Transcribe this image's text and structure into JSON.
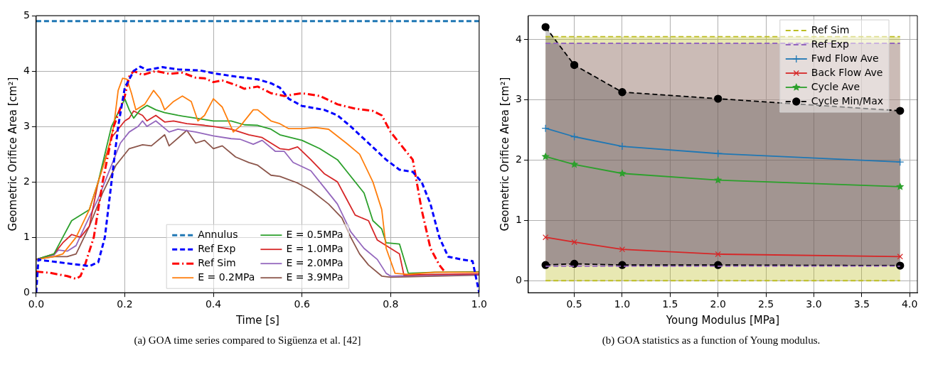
{
  "chart_data": [
    {
      "type": "line",
      "xlabel": "Time [s]",
      "ylabel": "Geometric Orifice Area [cm²]",
      "xlim": [
        0,
        1
      ],
      "ylim": [
        0,
        5
      ],
      "xticks": [
        {
          "value": 0,
          "label": "0.0"
        },
        {
          "value": 0.2,
          "label": "0.2"
        },
        {
          "value": 0.4,
          "label": "0.4"
        },
        {
          "value": 0.6,
          "label": "0.6"
        },
        {
          "value": 0.8,
          "label": "0.8"
        },
        {
          "value": 1,
          "label": "1.0"
        }
      ],
      "yticks": [
        0,
        1,
        2,
        3,
        4,
        5
      ],
      "grid": true,
      "legend": "bottom",
      "annotations": [
        "(a) GOA time series compared to Sigüenza et al. [42]"
      ],
      "ref_lines": [
        {
          "axis": "y",
          "value": 4.9,
          "label": "Annulus",
          "color": "#1f77b4",
          "line_style": "dashed"
        }
      ],
      "series": [
        {
          "name": "Ref Exp",
          "color": "#0000ff",
          "line_style": "dashed",
          "x": [
            0,
            0.005,
            0.02,
            0.1,
            0.12,
            0.14,
            0.155,
            0.17,
            0.185,
            0.2,
            0.22,
            0.235,
            0.25,
            0.285,
            0.32,
            0.37,
            0.4,
            0.45,
            0.5,
            0.53,
            0.55,
            0.57,
            0.6,
            0.65,
            0.68,
            0.71,
            0.75,
            0.79,
            0.82,
            0.85,
            0.87,
            0.89,
            0.91,
            0.93,
            0.96,
            0.985,
            1
          ],
          "values": [
            0,
            0.6,
            0.58,
            0.5,
            0.48,
            0.55,
            1,
            2,
            3,
            3.7,
            4,
            4.08,
            4.02,
            4.07,
            4.03,
            4.01,
            3.96,
            3.9,
            3.85,
            3.78,
            3.7,
            3.5,
            3.37,
            3.3,
            3.2,
            3,
            2.7,
            2.4,
            2.22,
            2.18,
            2,
            1.6,
            1,
            0.65,
            0.6,
            0.57,
            0
          ]
        },
        {
          "name": "Ref Sim",
          "color": "#ff0000",
          "line_style": "dashdot",
          "x": [
            0,
            0.03,
            0.07,
            0.09,
            0.1,
            0.11,
            0.13,
            0.15,
            0.175,
            0.2,
            0.21,
            0.22,
            0.24,
            0.27,
            0.3,
            0.33,
            0.36,
            0.38,
            0.4,
            0.42,
            0.45,
            0.47,
            0.5,
            0.53,
            0.56,
            0.6,
            0.64,
            0.68,
            0.72,
            0.76,
            0.78,
            0.8,
            0.85,
            0.87,
            0.89,
            0.91,
            0.92
          ],
          "values": [
            0.38,
            0.36,
            0.3,
            0.25,
            0.3,
            0.5,
            1,
            2,
            3,
            3.55,
            3.9,
            4,
            3.93,
            4,
            3.95,
            3.97,
            3.88,
            3.87,
            3.8,
            3.83,
            3.75,
            3.68,
            3.72,
            3.6,
            3.55,
            3.6,
            3.55,
            3.4,
            3.32,
            3.28,
            3.2,
            2.9,
            2.4,
            1.5,
            0.8,
            0.5,
            0.4
          ]
        },
        {
          "name": "E = 0.2MPa",
          "color": "#ff7f0e",
          "line_style": "solid",
          "x": [
            0,
            0.04,
            0.06,
            0.09,
            0.12,
            0.16,
            0.175,
            0.185,
            0.195,
            0.205,
            0.215,
            0.225,
            0.245,
            0.265,
            0.28,
            0.29,
            0.31,
            0.33,
            0.35,
            0.365,
            0.38,
            0.4,
            0.42,
            0.445,
            0.46,
            0.49,
            0.5,
            0.53,
            0.55,
            0.57,
            0.6,
            0.63,
            0.66,
            0.7,
            0.73,
            0.76,
            0.78,
            0.79,
            0.81,
            0.84,
            0.9,
            1
          ],
          "values": [
            0.6,
            0.65,
            0.7,
            1,
            1.5,
            2.5,
            3,
            3.65,
            3.87,
            3.85,
            3.6,
            3.3,
            3.4,
            3.65,
            3.5,
            3.3,
            3.45,
            3.55,
            3.45,
            3.1,
            3.2,
            3.5,
            3.35,
            2.9,
            3,
            3.3,
            3.3,
            3.1,
            3.05,
            2.96,
            2.96,
            2.98,
            2.95,
            2.7,
            2.5,
            2,
            1.5,
            0.8,
            0.35,
            0.33,
            0.37,
            0.37
          ]
        },
        {
          "name": "E = 0.5MPa",
          "color": "#2ca02c",
          "line_style": "solid",
          "x": [
            0,
            0.04,
            0.06,
            0.08,
            0.1,
            0.12,
            0.14,
            0.17,
            0.2,
            0.21,
            0.22,
            0.235,
            0.25,
            0.27,
            0.29,
            0.32,
            0.36,
            0.4,
            0.44,
            0.47,
            0.5,
            0.53,
            0.55,
            0.6,
            0.64,
            0.68,
            0.7,
            0.74,
            0.76,
            0.78,
            0.79,
            0.82,
            0.84,
            0.9,
            1
          ],
          "values": [
            0.6,
            0.7,
            1,
            1.3,
            1.4,
            1.5,
            2,
            3,
            3.5,
            3.3,
            3.15,
            3.3,
            3.38,
            3.3,
            3.25,
            3.2,
            3.15,
            3.1,
            3.1,
            3.03,
            3.02,
            2.95,
            2.85,
            2.75,
            2.6,
            2.4,
            2.2,
            1.8,
            1.3,
            1.15,
            0.9,
            0.88,
            0.35,
            0.37,
            0.38
          ]
        },
        {
          "name": "E = 1.0MPa",
          "color": "#d62728",
          "line_style": "solid",
          "x": [
            0,
            0.04,
            0.06,
            0.08,
            0.1,
            0.12,
            0.14,
            0.17,
            0.2,
            0.21,
            0.22,
            0.24,
            0.25,
            0.27,
            0.29,
            0.31,
            0.34,
            0.38,
            0.4,
            0.44,
            0.48,
            0.51,
            0.55,
            0.57,
            0.59,
            0.62,
            0.65,
            0.68,
            0.7,
            0.72,
            0.75,
            0.77,
            0.8,
            0.82,
            0.83,
            0.9,
            1
          ],
          "values": [
            0.6,
            0.7,
            0.9,
            1.05,
            1,
            1.2,
            2,
            2.8,
            3.1,
            3.15,
            3.28,
            3.2,
            3.1,
            3.2,
            3.08,
            3.1,
            3.05,
            3.02,
            3,
            2.95,
            2.85,
            2.8,
            2.6,
            2.58,
            2.63,
            2.4,
            2.15,
            2,
            1.7,
            1.4,
            1.3,
            0.95,
            0.8,
            0.7,
            0.32,
            0.33,
            0.34
          ]
        },
        {
          "name": "E = 2.0MPa",
          "color": "#9467bd",
          "line_style": "solid",
          "x": [
            0,
            0.04,
            0.05,
            0.07,
            0.09,
            0.11,
            0.14,
            0.17,
            0.19,
            0.21,
            0.23,
            0.24,
            0.25,
            0.27,
            0.3,
            0.32,
            0.36,
            0.4,
            0.44,
            0.46,
            0.49,
            0.51,
            0.54,
            0.56,
            0.58,
            0.62,
            0.65,
            0.68,
            0.71,
            0.74,
            0.77,
            0.79,
            0.8,
            0.9,
            1
          ],
          "values": [
            0.6,
            0.68,
            0.77,
            0.75,
            0.85,
            1.2,
            1.7,
            2.3,
            2.7,
            2.9,
            3,
            3.1,
            3,
            3.1,
            2.9,
            2.95,
            2.9,
            2.83,
            2.78,
            2.77,
            2.68,
            2.75,
            2.55,
            2.55,
            2.35,
            2.2,
            1.9,
            1.6,
            1.1,
            0.8,
            0.6,
            0.35,
            0.3,
            0.32,
            0.33
          ]
        },
        {
          "name": "E = 3.9MPa",
          "color": "#8c564b",
          "line_style": "solid",
          "x": [
            0,
            0.04,
            0.07,
            0.09,
            0.12,
            0.15,
            0.18,
            0.21,
            0.24,
            0.26,
            0.29,
            0.3,
            0.34,
            0.36,
            0.38,
            0.4,
            0.42,
            0.45,
            0.48,
            0.5,
            0.53,
            0.55,
            0.59,
            0.62,
            0.66,
            0.69,
            0.71,
            0.73,
            0.75,
            0.78,
            0.8,
            0.9,
            1
          ],
          "values": [
            0.6,
            0.65,
            0.65,
            0.7,
            1.2,
            1.8,
            2.3,
            2.6,
            2.67,
            2.65,
            2.85,
            2.65,
            2.93,
            2.7,
            2.75,
            2.6,
            2.65,
            2.45,
            2.35,
            2.3,
            2.12,
            2.1,
            1.98,
            1.85,
            1.6,
            1.35,
            1,
            0.7,
            0.5,
            0.3,
            0.28,
            0.3,
            0.32
          ]
        }
      ]
    },
    {
      "type": "line",
      "xlabel": "Young Modulus [MPa]",
      "ylabel": "Geometric Orifice Area [cm²]",
      "xlim": [
        0.02,
        4.08
      ],
      "ylim": [
        -0.2,
        4.4
      ],
      "xticks": [
        0.5,
        {
          "value": 1,
          "label": "1.0"
        },
        1.5,
        {
          "value": 2,
          "label": "2.0"
        },
        2.5,
        {
          "value": 3,
          "label": "3.0"
        },
        3.5,
        {
          "value": 4,
          "label": "4.0"
        }
      ],
      "yticks": [
        0,
        1,
        2,
        3,
        4
      ],
      "grid": true,
      "legend": "top right",
      "annotations": [
        "(b) GOA statistics as a function of Young modulus."
      ],
      "x": [
        0.2,
        0.5,
        1,
        2,
        3.9
      ],
      "series": [
        {
          "name": "Ref Sim",
          "color": "#bcbd22",
          "line_style": "dashed",
          "values": [
            4.05,
            4.05,
            4.05,
            4.05,
            4.05
          ],
          "lower": [
            0,
            0,
            0,
            0,
            0
          ],
          "upper": [
            4.05,
            4.05,
            4.05,
            4.05,
            4.05
          ]
        },
        {
          "color": "#bcbd22",
          "line_style": "dashed",
          "values": [
            0,
            0,
            0,
            0,
            0
          ]
        },
        {
          "name": "Ref Exp",
          "color": "#9467bd",
          "line_style": "dashed",
          "values": [
            3.94,
            3.94,
            3.94,
            3.94,
            3.94
          ],
          "lower": [
            0.24,
            0.24,
            0.24,
            0.24,
            0.24
          ],
          "upper": [
            3.94,
            3.94,
            3.94,
            3.94,
            3.94
          ]
        },
        {
          "color": "#9467bd",
          "line_style": "dashed",
          "values": [
            0.24,
            0.24,
            0.24,
            0.24,
            0.24
          ]
        },
        {
          "name": "Fwd Flow Ave",
          "color": "#1f77b4",
          "marker": "cross",
          "line_style": "solid",
          "values": [
            2.53,
            2.39,
            2.23,
            2.11,
            1.97
          ]
        },
        {
          "name": "Back Flow Ave",
          "color": "#d62728",
          "marker": "x",
          "line_style": "solid",
          "values": [
            0.72,
            0.64,
            0.52,
            0.44,
            0.4
          ]
        },
        {
          "name": "Cycle Ave",
          "color": "#2ca02c",
          "marker": "star",
          "line_style": "solid",
          "values": [
            2.06,
            1.93,
            1.78,
            1.67,
            1.56
          ]
        },
        {
          "name": "Cycle Min/Max",
          "color": "#000000",
          "marker": "circle",
          "line_style": "dashed",
          "values": [
            4.21,
            3.58,
            3.13,
            3.02,
            2.82
          ],
          "lower": [
            0.26,
            0.28,
            0.26,
            0.26,
            0.25
          ],
          "upper": [
            4.21,
            3.58,
            3.13,
            3.02,
            2.82
          ]
        },
        {
          "color": "#000000",
          "marker": "circle",
          "line_style": "dashed",
          "values": [
            0.26,
            0.28,
            0.26,
            0.26,
            0.25
          ]
        }
      ]
    }
  ]
}
